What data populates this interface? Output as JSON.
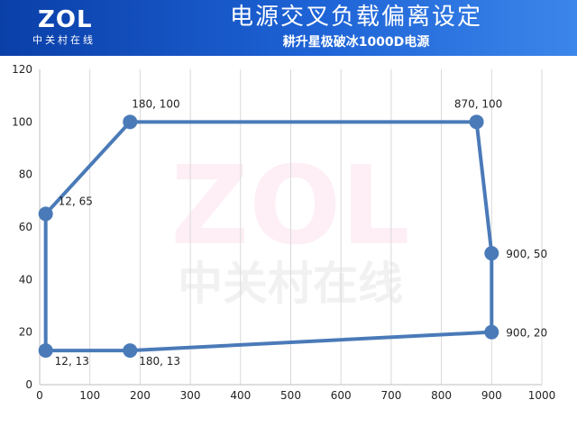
{
  "header": {
    "logo_text": "ZOL",
    "logo_sub": "中关村在线",
    "title": "电源交叉负载偏离设定",
    "subtitle": "耕升星极破冰1000D电源"
  },
  "watermark": {
    "text": "ZOL",
    "sub": "中关村在线"
  },
  "colors": {
    "line": "#4a7ab8",
    "grid": "#d9d9d9",
    "header": "#1e63d6"
  },
  "chart_data": {
    "type": "scatter",
    "title": "电源交叉负载偏离设定",
    "subtitle": "耕升星极破冰1000D电源",
    "xlabel": "",
    "ylabel": "",
    "xlim": [
      0,
      1000
    ],
    "ylim": [
      0,
      120
    ],
    "x_ticks": [
      0,
      100,
      200,
      300,
      400,
      500,
      600,
      700,
      800,
      900,
      1000
    ],
    "y_ticks": [
      0,
      20,
      40,
      60,
      80,
      100,
      120
    ],
    "grid": "vertical",
    "series": [
      {
        "points": [
          {
            "x": 12,
            "y": 13,
            "label": "12, 13"
          },
          {
            "x": 12,
            "y": 65,
            "label": "12, 65"
          },
          {
            "x": 180,
            "y": 100,
            "label": "180, 100"
          },
          {
            "x": 870,
            "y": 100,
            "label": "870, 100"
          },
          {
            "x": 900,
            "y": 50,
            "label": "900, 50"
          },
          {
            "x": 900,
            "y": 20,
            "label": "900, 20"
          },
          {
            "x": 180,
            "y": 13,
            "label": "180, 13"
          }
        ],
        "closed": true
      }
    ]
  }
}
